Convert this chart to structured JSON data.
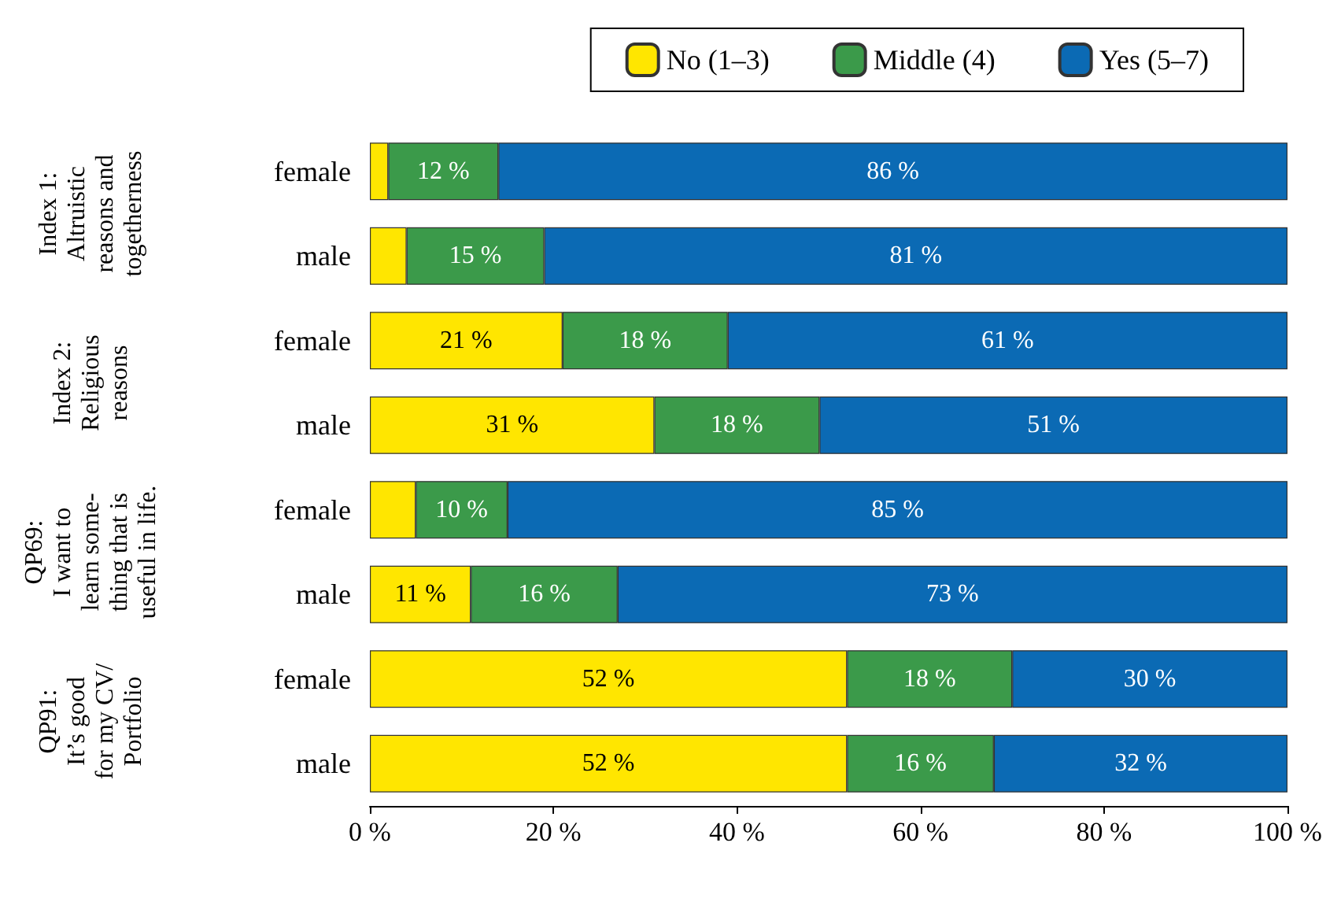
{
  "chart_data": {
    "type": "bar",
    "orientation": "horizontal",
    "stacked": true,
    "categories": [
      "female",
      "male",
      "female",
      "male",
      "female",
      "male",
      "female",
      "male"
    ],
    "series": [
      {
        "name": "No (1–3)",
        "color": "#ffe600",
        "values": [
          2,
          4,
          21,
          31,
          5,
          11,
          52,
          52
        ],
        "value_labels": [
          null,
          null,
          "21 %",
          "31 %",
          null,
          "11 %",
          "52 %",
          "52 %"
        ]
      },
      {
        "name": "Middle (4)",
        "color": "#3b9a4a",
        "values": [
          12,
          15,
          18,
          18,
          10,
          16,
          18,
          16
        ],
        "value_labels": [
          "12 %",
          "15 %",
          "18 %",
          "18 %",
          "10 %",
          "16 %",
          "18 %",
          "16 %"
        ]
      },
      {
        "name": "Yes (5–7)",
        "color": "#0b6ab4",
        "values": [
          86,
          81,
          61,
          51,
          85,
          73,
          30,
          32
        ],
        "value_labels": [
          "86 %",
          "81 %",
          "61 %",
          "51 %",
          "85 %",
          "73 %",
          "30 %",
          "32 %"
        ]
      }
    ],
    "xlim": [
      0,
      100
    ],
    "xticks": [
      {
        "value": 0,
        "label": "0 %"
      },
      {
        "value": 20,
        "label": "20 %"
      },
      {
        "value": 40,
        "label": "40 %"
      },
      {
        "value": 60,
        "label": "60 %"
      },
      {
        "value": 80,
        "label": "80 %"
      },
      {
        "value": 100,
        "label": "100 %"
      }
    ],
    "annotations": [
      "Index 1:\nAltruistic\nreasons and\ntogetherness",
      "Index 2:\nReligious\nreasons",
      "QP69:\nI want to\nlearn some-\nthing that is\nuseful in life.",
      "QP91:\nIt’s good\nfor my CV/\nPortfolio"
    ],
    "legend": "top right",
    "grid": false
  }
}
